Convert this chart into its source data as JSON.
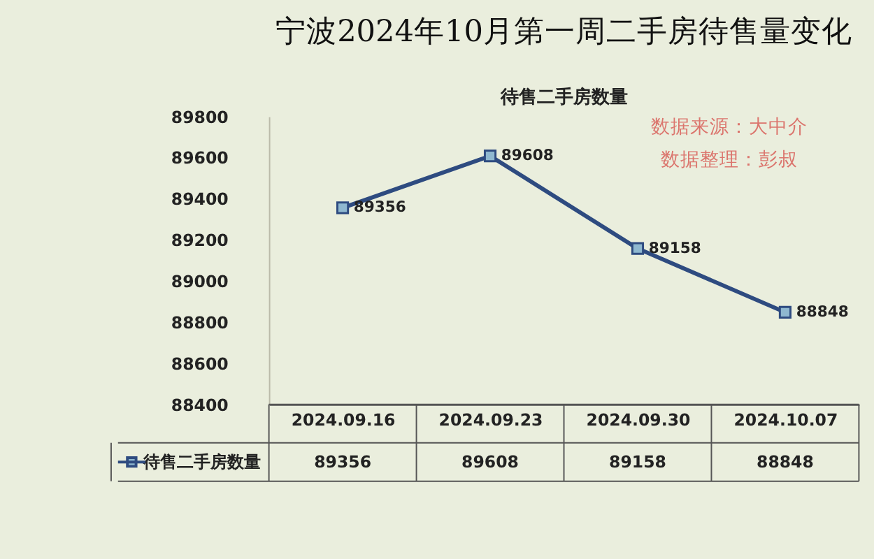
{
  "chart_data": {
    "type": "line",
    "title": "宁波2024年10月第一周二手房待售量变化",
    "subtitle": "待售二手房数量",
    "categories": [
      "2024.09.16",
      "2024.09.23",
      "2024.09.30",
      "2024.10.07"
    ],
    "series": [
      {
        "name": "待售二手房数量",
        "color": "#2e4b80",
        "values": [
          89356,
          89608,
          89158,
          88848
        ]
      }
    ],
    "ylim": [
      88400,
      89800
    ],
    "yticks": [
      88400,
      88600,
      88800,
      89000,
      89200,
      89400,
      89600,
      89800
    ],
    "value_labels": [
      "89356",
      "89608",
      "89158",
      "88848"
    ],
    "grid": false,
    "legend": "bottom left",
    "marker": "square",
    "line_style": "solid",
    "data_labels": true,
    "annotations": [
      "数据来源：大中介",
      "数据整理：彭叔"
    ]
  }
}
